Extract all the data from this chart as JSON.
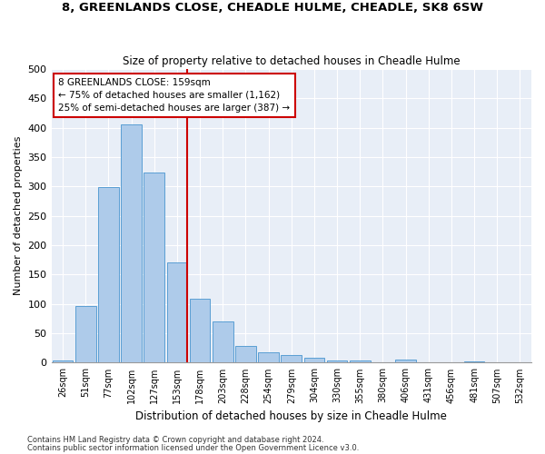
{
  "title1": "8, GREENLANDS CLOSE, CHEADLE HULME, CHEADLE, SK8 6SW",
  "title2": "Size of property relative to detached houses in Cheadle Hulme",
  "xlabel": "Distribution of detached houses by size in Cheadle Hulme",
  "ylabel": "Number of detached properties",
  "categories": [
    "26sqm",
    "51sqm",
    "77sqm",
    "102sqm",
    "127sqm",
    "153sqm",
    "178sqm",
    "203sqm",
    "228sqm",
    "254sqm",
    "279sqm",
    "304sqm",
    "330sqm",
    "355sqm",
    "380sqm",
    "406sqm",
    "431sqm",
    "456sqm",
    "481sqm",
    "507sqm",
    "532sqm"
  ],
  "values": [
    3,
    97,
    299,
    406,
    324,
    170,
    109,
    70,
    29,
    17,
    13,
    9,
    4,
    3,
    1,
    5,
    1,
    0,
    2,
    1,
    0
  ],
  "bar_color": "#aecbea",
  "bar_edge_color": "#5a9fd4",
  "vline_x": 5.42,
  "vline_color": "#cc0000",
  "annotation_text": "8 GREENLANDS CLOSE: 159sqm\n← 75% of detached houses are smaller (1,162)\n25% of semi-detached houses are larger (387) →",
  "annotation_box_color": "#ffffff",
  "annotation_box_edge_color": "#cc0000",
  "ylim": [
    0,
    500
  ],
  "yticks": [
    0,
    50,
    100,
    150,
    200,
    250,
    300,
    350,
    400,
    450,
    500
  ],
  "footnote1": "Contains HM Land Registry data © Crown copyright and database right 2024.",
  "footnote2": "Contains public sector information licensed under the Open Government Licence v3.0.",
  "bg_color": "#e8eef7"
}
